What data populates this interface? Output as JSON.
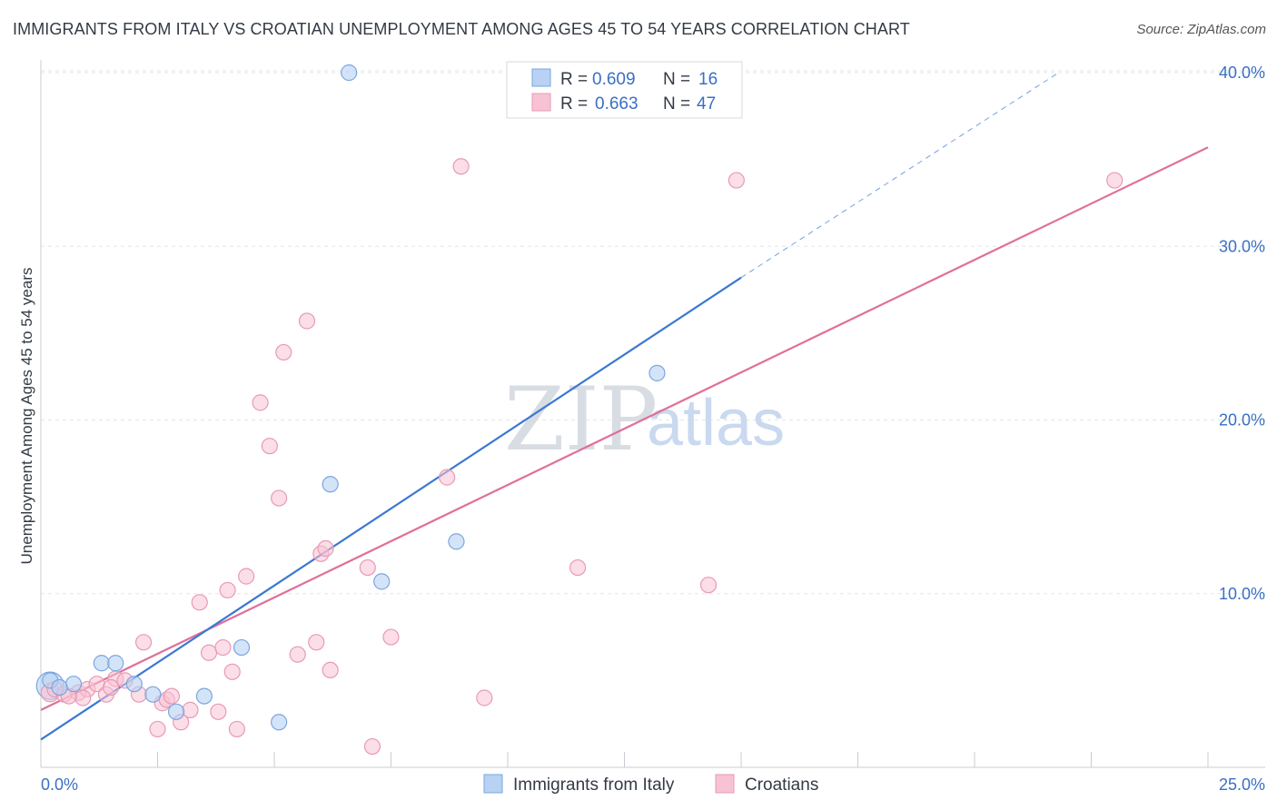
{
  "title": "IMMIGRANTS FROM ITALY VS CROATIAN UNEMPLOYMENT AMONG AGES 45 TO 54 YEARS CORRELATION CHART",
  "source": "Source: ZipAtlas.com",
  "watermark": {
    "part1": "ZIP",
    "part2": "atlas"
  },
  "colors": {
    "blue": "#3a78d2",
    "blue_fill": "#b8d2f3",
    "pink": "#e0709a",
    "pink_fill": "#f7c3d4",
    "tick_text": "#3a6fc4"
  },
  "legend": {
    "r_label": "R =",
    "n_label": "N =",
    "rows": [
      {
        "r": "0.609",
        "n": "16"
      },
      {
        "r": "0.663",
        "n": "47"
      }
    ]
  },
  "bottom_legend": [
    "Immigrants from Italy",
    "Croatians"
  ],
  "chart_data": {
    "type": "scatter",
    "title": "IMMIGRANTS FROM ITALY VS CROATIAN UNEMPLOYMENT AMONG AGES 45 TO 54 YEARS CORRELATION CHART",
    "xlabel": "",
    "ylabel": "Unemployment Among Ages 45 to 54 years",
    "xlim": [
      0,
      25
    ],
    "ylim": [
      0,
      40.8
    ],
    "x_tick_labels": [
      "0.0%",
      "25.0%"
    ],
    "y_ticks": [
      10,
      20,
      30,
      40
    ],
    "y_tick_labels": [
      "10.0%",
      "20.0%",
      "30.0%",
      "40.0%"
    ],
    "grid": true,
    "series": [
      {
        "name": "Immigrants from Italy",
        "r": 0.609,
        "n": 16,
        "points": [
          [
            0.2,
            5.0
          ],
          [
            0.7,
            4.8
          ],
          [
            1.3,
            6.0
          ],
          [
            1.6,
            6.0
          ],
          [
            2.0,
            4.8
          ],
          [
            2.4,
            4.2
          ],
          [
            2.9,
            3.2
          ],
          [
            3.5,
            4.1
          ],
          [
            4.3,
            6.9
          ],
          [
            5.1,
            2.6
          ],
          [
            6.2,
            16.3
          ],
          [
            6.6,
            40.0
          ],
          [
            7.3,
            10.7
          ],
          [
            8.9,
            13.0
          ],
          [
            13.2,
            22.7
          ],
          [
            0.4,
            4.6
          ]
        ],
        "trend": {
          "x0": 0,
          "y0": 1.6,
          "x1": 15.0,
          "y1": 28.2,
          "dash_to_x": 21.8,
          "dash_to_y": 40.0
        }
      },
      {
        "name": "Croatians",
        "r": 0.663,
        "n": 47,
        "points": [
          [
            0.3,
            4.5
          ],
          [
            0.5,
            4.2
          ],
          [
            0.8,
            4.3
          ],
          [
            1.0,
            4.5
          ],
          [
            1.2,
            4.8
          ],
          [
            1.4,
            4.2
          ],
          [
            1.6,
            5.1
          ],
          [
            1.8,
            5.0
          ],
          [
            2.1,
            4.2
          ],
          [
            2.2,
            7.2
          ],
          [
            2.5,
            2.2
          ],
          [
            2.6,
            3.7
          ],
          [
            2.7,
            3.9
          ],
          [
            3.0,
            2.6
          ],
          [
            3.2,
            3.3
          ],
          [
            3.4,
            9.5
          ],
          [
            3.6,
            6.6
          ],
          [
            3.9,
            6.9
          ],
          [
            4.0,
            10.2
          ],
          [
            4.1,
            5.5
          ],
          [
            4.2,
            2.2
          ],
          [
            4.4,
            11.0
          ],
          [
            4.7,
            21.0
          ],
          [
            4.9,
            18.5
          ],
          [
            5.1,
            15.5
          ],
          [
            5.2,
            23.9
          ],
          [
            5.5,
            6.5
          ],
          [
            5.7,
            25.7
          ],
          [
            5.9,
            7.2
          ],
          [
            6.0,
            12.3
          ],
          [
            6.1,
            12.6
          ],
          [
            6.2,
            5.6
          ],
          [
            7.0,
            11.5
          ],
          [
            7.1,
            1.2
          ],
          [
            7.5,
            7.5
          ],
          [
            8.7,
            16.7
          ],
          [
            9.0,
            34.6
          ],
          [
            9.5,
            4.0
          ],
          [
            11.5,
            11.5
          ],
          [
            14.3,
            10.5
          ],
          [
            14.9,
            33.8
          ],
          [
            23.0,
            33.8
          ],
          [
            0.9,
            4.0
          ],
          [
            1.5,
            4.6
          ],
          [
            2.8,
            4.1
          ],
          [
            3.8,
            3.2
          ],
          [
            0.6,
            4.1
          ]
        ],
        "trend": {
          "x0": 0,
          "y0": 3.3,
          "x1": 25.0,
          "y1": 35.7
        }
      }
    ]
  }
}
